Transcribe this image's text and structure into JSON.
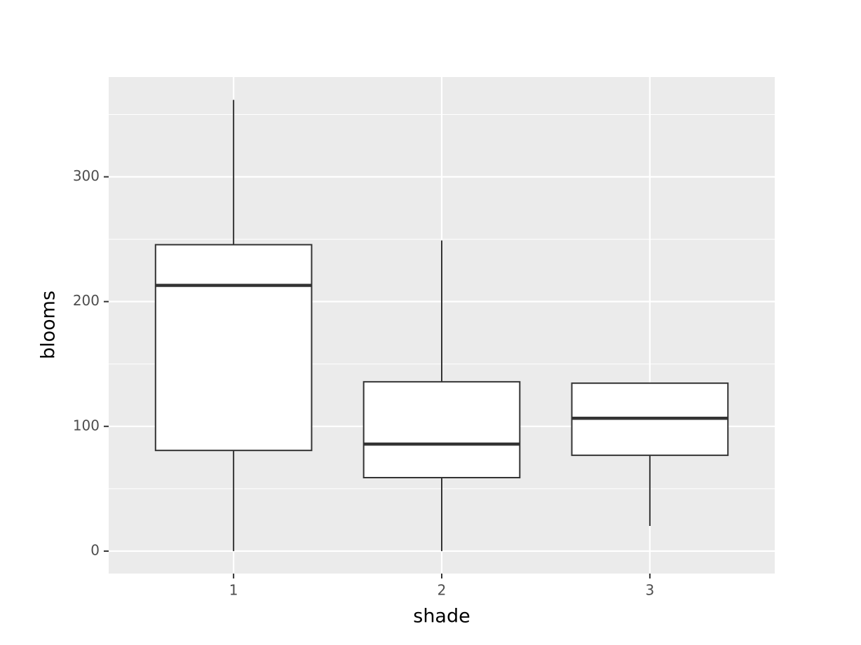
{
  "chart_data": {
    "type": "box",
    "x_label": "shade",
    "y_label": "blooms",
    "categories": [
      "1",
      "2",
      "3"
    ],
    "boxes": [
      {
        "min": 0,
        "q1": 80.7,
        "median": 213,
        "q3": 245.6,
        "max": 361.7
      },
      {
        "min": 0,
        "q1": 58.9,
        "median": 85.8,
        "q3": 135.7,
        "max": 249
      },
      {
        "min": 20.2,
        "q1": 76.8,
        "median": 106.5,
        "q3": 134.6,
        "max": 134.6
      }
    ],
    "ylim": [
      -18,
      380
    ],
    "yticks": [
      0,
      100,
      200,
      300
    ],
    "yminor": [
      50,
      150,
      250,
      350
    ],
    "grid": true,
    "color": "#333333",
    "fill": "#ffffff",
    "panel_color": "#ebebeb"
  }
}
